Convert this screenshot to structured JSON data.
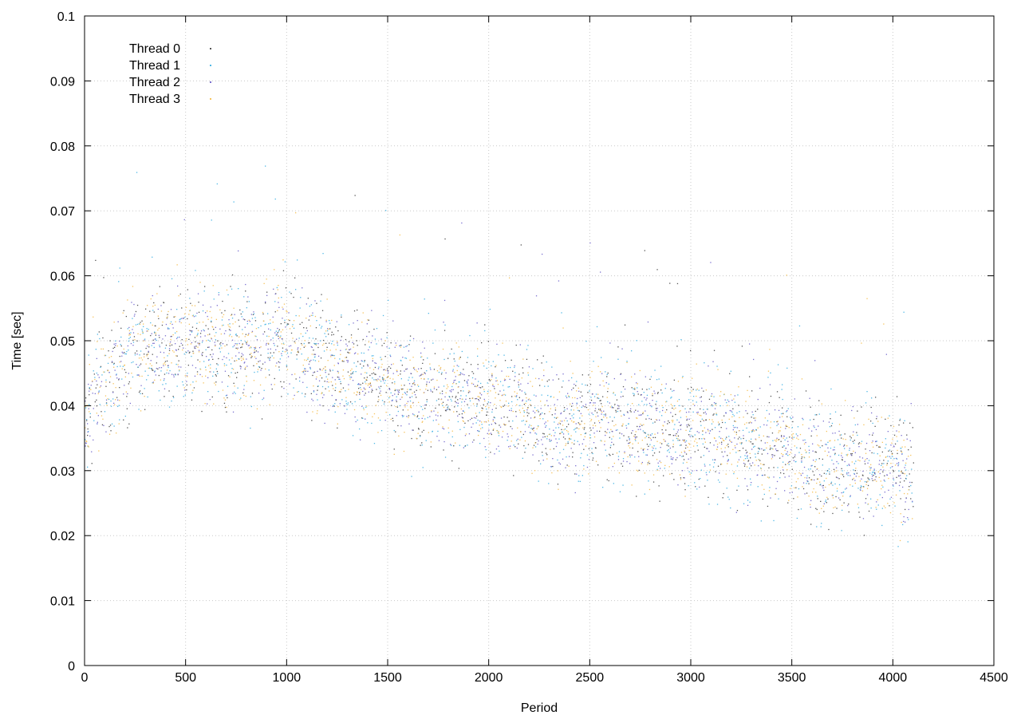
{
  "chart_data": {
    "type": "scatter",
    "title": "",
    "xlabel": "Period",
    "ylabel": "Time [sec]",
    "xlim": [
      0,
      4500
    ],
    "ylim": [
      0,
      0.1
    ],
    "xticks": [
      "0",
      "500",
      "1000",
      "1500",
      "2000",
      "2500",
      "3000",
      "3500",
      "4000",
      "4500"
    ],
    "yticks": [
      "0",
      "0.01",
      "0.02",
      "0.03",
      "0.04",
      "0.05",
      "0.06",
      "0.07",
      "0.08",
      "0.09",
      "0.1"
    ],
    "grid": true,
    "legend_position": "top-left",
    "trend": [
      [
        0,
        0.036
      ],
      [
        40,
        0.041
      ],
      [
        100,
        0.043
      ],
      [
        180,
        0.046
      ],
      [
        300,
        0.049
      ],
      [
        500,
        0.05
      ],
      [
        700,
        0.049
      ],
      [
        1000,
        0.05
      ],
      [
        1200,
        0.047
      ],
      [
        1500,
        0.043
      ],
      [
        1800,
        0.041
      ],
      [
        2100,
        0.041
      ],
      [
        2300,
        0.037
      ],
      [
        2500,
        0.038
      ],
      [
        2800,
        0.037
      ],
      [
        3200,
        0.035
      ],
      [
        3600,
        0.032
      ],
      [
        4100,
        0.03
      ]
    ],
    "series": [
      {
        "name": "Thread 0",
        "color": "#555555",
        "x_range": [
          0,
          4100
        ],
        "spread": 0.0065
      },
      {
        "name": "Thread 1",
        "color": "#4fb8e6",
        "x_range": [
          0,
          4100
        ],
        "spread": 0.007
      },
      {
        "name": "Thread 2",
        "color": "#7a6fcf",
        "x_range": [
          0,
          4100
        ],
        "spread": 0.006
      },
      {
        "name": "Thread 3",
        "color": "#f6c35c",
        "x_range": [
          0,
          4100
        ],
        "spread": 0.006
      }
    ]
  }
}
